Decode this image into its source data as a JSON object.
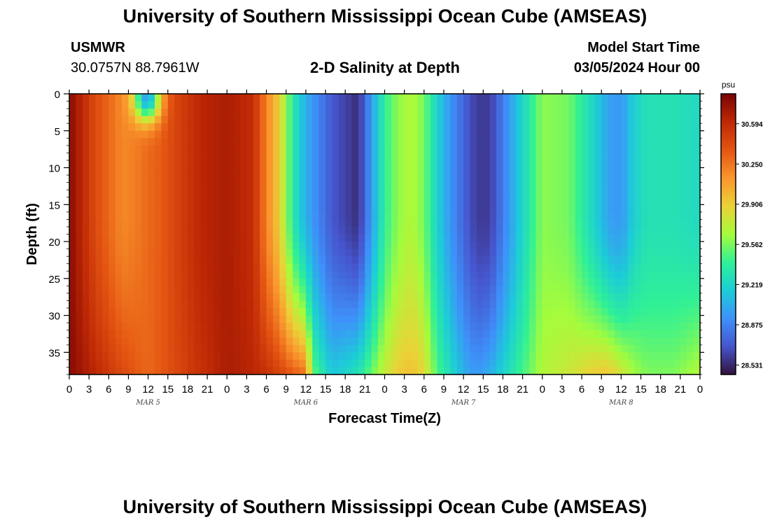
{
  "header": {
    "title": "University of Southern Mississippi Ocean Cube (AMSEAS)",
    "station": "USMWR",
    "coords": "30.0757N  88.7961W",
    "subtitle": "2-D Salinity at Depth",
    "model_start_label": "Model Start Time",
    "model_start_value": "03/05/2024 Hour 00"
  },
  "footer": {
    "title": "University of Southern Mississippi Ocean Cube (AMSEAS)"
  },
  "chart_data": {
    "type": "heatmap",
    "xlabel": "Forecast Time(Z)",
    "ylabel": "Depth (ft)",
    "x_ticks": [
      "0",
      "3",
      "6",
      "9",
      "12",
      "15",
      "18",
      "21",
      "0",
      "3",
      "6",
      "9",
      "12",
      "15",
      "18",
      "21",
      "0",
      "3",
      "6",
      "9",
      "12",
      "15",
      "18",
      "21",
      "0",
      "3",
      "6",
      "9",
      "12",
      "15",
      "18",
      "21",
      "0"
    ],
    "date_labels": [
      "MAR 5",
      "MAR 6",
      "MAR 7",
      "MAR 8"
    ],
    "xlim_hours": [
      0,
      96
    ],
    "y_ticks": [
      0,
      5,
      10,
      15,
      20,
      25,
      30,
      35
    ],
    "ylim": [
      0,
      38
    ],
    "colorbar": {
      "unit": "psu",
      "ticks": [
        "30.594",
        "30.250",
        "29.906",
        "29.562",
        "29.219",
        "28.875",
        "28.531"
      ],
      "range": [
        28.45,
        30.85
      ]
    },
    "series": {
      "base_hours": [
        0,
        4,
        8,
        10,
        12,
        14,
        16,
        20,
        24,
        28,
        30,
        32,
        34,
        36,
        40,
        44,
        48,
        50,
        52,
        54,
        56,
        58,
        60,
        62,
        64,
        68,
        72,
        76,
        80,
        82,
        84,
        86,
        88,
        92,
        96
      ],
      "base_salinity": [
        30.8,
        30.42,
        30.18,
        30.22,
        30.3,
        30.35,
        30.45,
        30.62,
        30.68,
        30.58,
        30.2,
        29.9,
        29.35,
        29.05,
        28.7,
        28.55,
        29.4,
        29.6,
        29.7,
        29.55,
        29.2,
        28.95,
        28.75,
        28.6,
        28.6,
        29.1,
        29.6,
        29.55,
        29.2,
        29.0,
        28.95,
        29.2,
        29.3,
        29.3,
        29.25
      ],
      "surface_anomaly": {
        "hour": 11.8,
        "depth_ft": 0.5,
        "salinity": 29.0
      },
      "bottom_level_hours": [
        0,
        12,
        24,
        30,
        36,
        37,
        40,
        44,
        48,
        50,
        52,
        54,
        56,
        58,
        60,
        62,
        64,
        68,
        72,
        76,
        80,
        82,
        84,
        86,
        88,
        92,
        96
      ],
      "bottom_level_salinity": [
        30.8,
        30.3,
        30.68,
        30.6,
        30.4,
        29.6,
        29.2,
        29.4,
        29.8,
        29.95,
        30.0,
        29.9,
        29.5,
        29.3,
        29.1,
        29.0,
        29.1,
        29.4,
        29.7,
        29.8,
        30.0,
        30.05,
        29.9,
        29.7,
        29.6,
        29.6,
        29.75
      ]
    }
  }
}
